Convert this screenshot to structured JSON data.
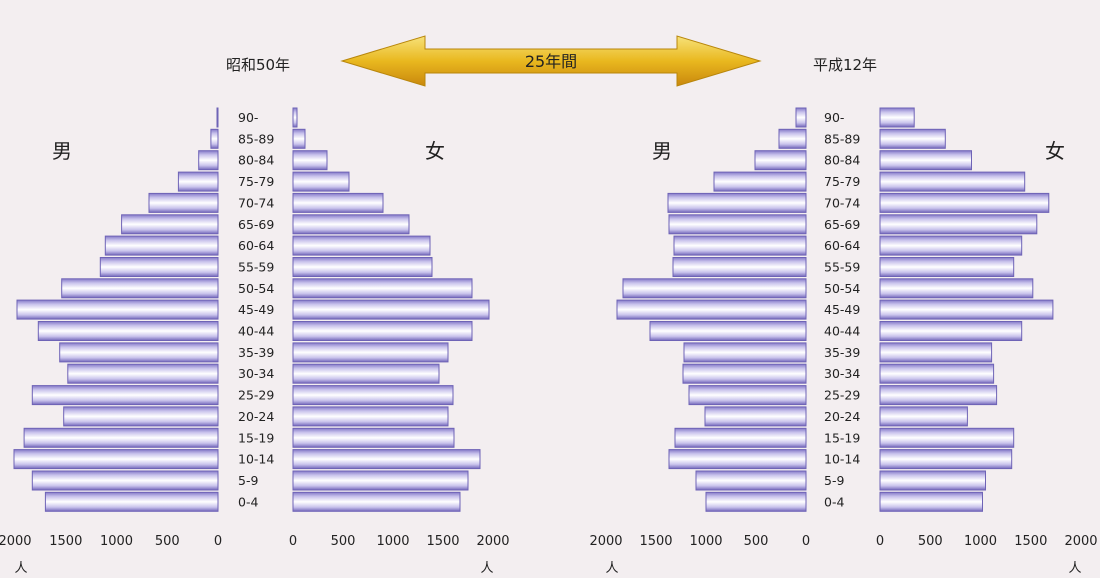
{
  "header": {
    "left_title": "昭和50年",
    "right_title": "平成12年",
    "arrow_label": "25年間"
  },
  "colors": {
    "background": "#f3eef0",
    "bar_edge": "#7b6fc0",
    "bar_light": "#ffffff",
    "arrow_fill": "#e3b21a"
  },
  "chart_data": [
    {
      "type": "bar",
      "title": "昭和50年",
      "age_groups": [
        "90-",
        "85-89",
        "80-84",
        "75-79",
        "70-74",
        "65-69",
        "60-64",
        "55-59",
        "50-54",
        "45-49",
        "40-44",
        "35-39",
        "30-34",
        "25-29",
        "20-24",
        "15-19",
        "10-14",
        "5-9",
        "0-4"
      ],
      "series": [
        {
          "name": "男",
          "values": [
            10,
            70,
            190,
            390,
            680,
            950,
            1110,
            1160,
            1540,
            1980,
            1770,
            1560,
            1480,
            1830,
            1520,
            1910,
            2010,
            1830,
            1700
          ]
        },
        {
          "name": "女",
          "values": [
            40,
            120,
            340,
            560,
            900,
            1160,
            1370,
            1390,
            1790,
            1960,
            1790,
            1550,
            1460,
            1600,
            1550,
            1610,
            1870,
            1750,
            1670
          ]
        }
      ],
      "male_label": "男",
      "female_label": "女",
      "xlim": [
        0,
        2000
      ],
      "ticks": [
        2000,
        1500,
        1000,
        500,
        0
      ],
      "female_ticks": [
        0,
        500,
        1000,
        1500,
        2000
      ],
      "unit_left": "人",
      "unit_right": "人"
    },
    {
      "type": "bar",
      "title": "平成12年",
      "age_groups": [
        "90-",
        "85-89",
        "80-84",
        "75-79",
        "70-74",
        "65-69",
        "60-64",
        "55-59",
        "50-54",
        "45-49",
        "40-44",
        "35-39",
        "30-34",
        "25-29",
        "20-24",
        "15-19",
        "10-14",
        "5-9",
        "0-4"
      ],
      "series": [
        {
          "name": "男",
          "values": [
            100,
            270,
            510,
            920,
            1380,
            1370,
            1320,
            1330,
            1830,
            1890,
            1560,
            1220,
            1230,
            1170,
            1010,
            1310,
            1370,
            1100,
            1000
          ]
        },
        {
          "name": "女",
          "values": [
            340,
            650,
            910,
            1440,
            1680,
            1560,
            1410,
            1330,
            1520,
            1720,
            1410,
            1110,
            1130,
            1160,
            870,
            1330,
            1310,
            1050,
            1020
          ]
        }
      ],
      "male_label": "男",
      "female_label": "女",
      "xlim": [
        0,
        2000
      ],
      "ticks": [
        2000,
        1500,
        1000,
        500,
        0
      ],
      "female_ticks": [
        0,
        500,
        1000,
        1500,
        2000
      ],
      "unit_left": "人",
      "unit_right": "人"
    }
  ]
}
